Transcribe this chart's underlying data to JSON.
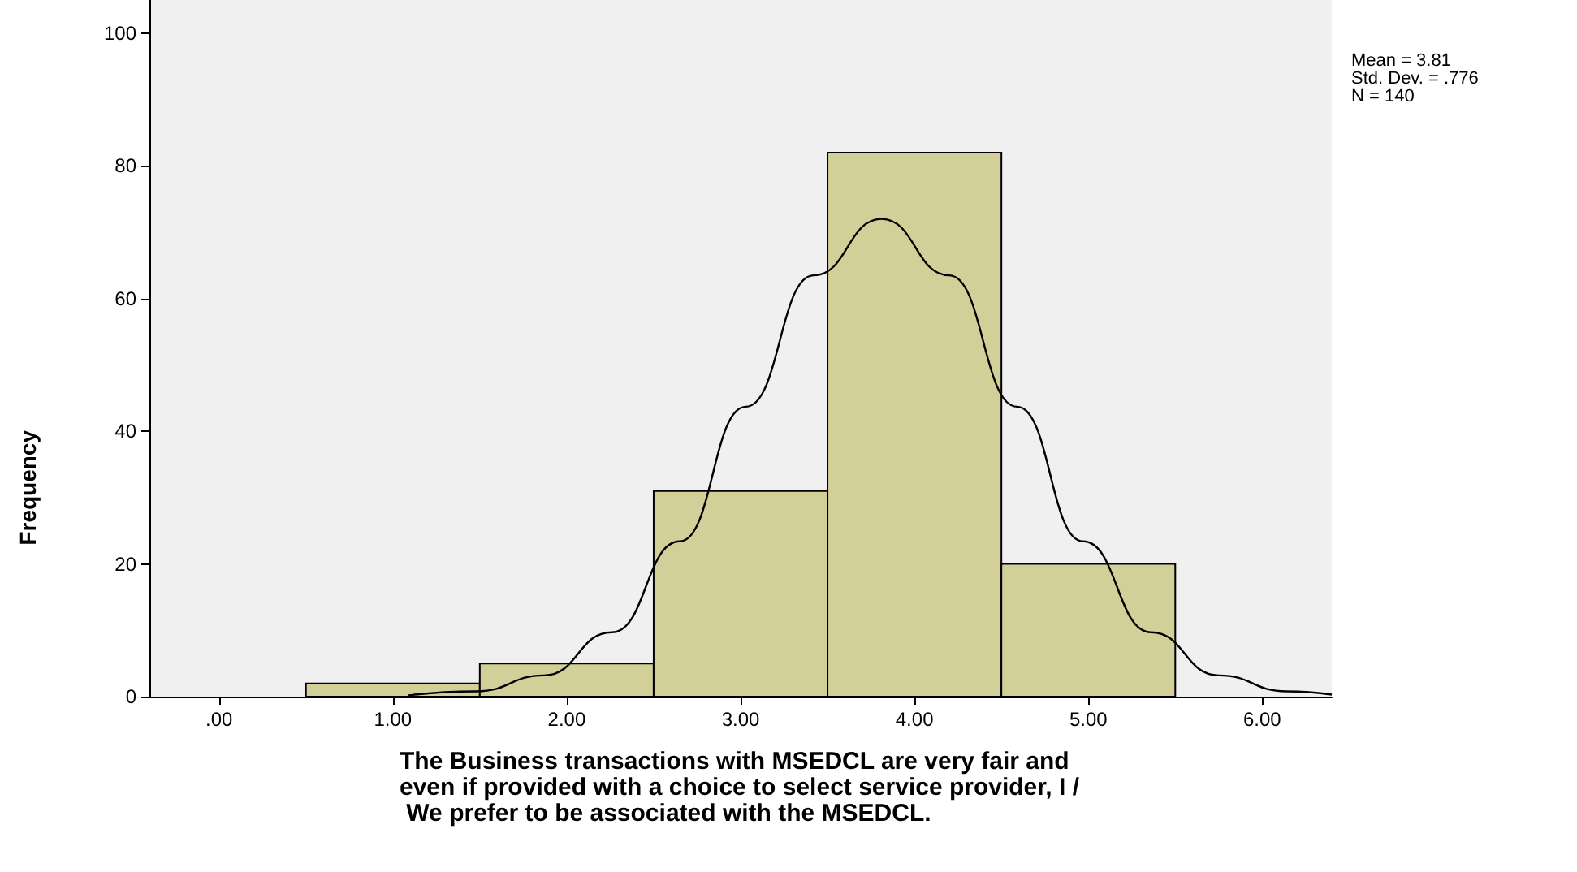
{
  "chart_data": {
    "type": "histogram",
    "xlabel": "The Business transactions with MSEDCL are very fair and even if provided with a choice to select service provider, I / We prefer to be associated with the MSEDCL.",
    "ylabel": "Frequency",
    "annotations": [
      "Mean = 3.81",
      "Std. Dev. = .776",
      "N = 140"
    ],
    "bins": [
      0.5,
      1.5,
      2.5,
      3.5,
      4.5,
      5.5
    ],
    "values": [
      2,
      5,
      31,
      82,
      20
    ],
    "color": "#d3cf98",
    "series": [
      {
        "type": "line",
        "color": "#000000",
        "x": [
          1.09,
          1.48,
          1.87,
          2.26,
          2.65,
          3.03,
          3.42,
          3.81,
          4.2,
          4.59,
          4.97,
          5.36,
          5.75,
          6.14,
          6.4
        ],
        "values": [
          0.2,
          0.8,
          3.2,
          9.7,
          23.4,
          43.7,
          63.5,
          72,
          63.5,
          43.7,
          23.4,
          9.7,
          3.2,
          0.8,
          0.3
        ]
      }
    ],
    "xlim": [
      -0.4,
      6.4
    ],
    "xticks": [
      {
        "value": 0,
        "label": ".00"
      },
      {
        "value": 1,
        "label": "1.00"
      },
      {
        "value": 2,
        "label": "2.00"
      },
      {
        "value": 3,
        "label": "3.00"
      },
      {
        "value": 4,
        "label": "4.00"
      },
      {
        "value": 5,
        "label": "5.00"
      },
      {
        "value": 6,
        "label": "6.00"
      }
    ],
    "ylim": [
      0,
      105
    ],
    "yticks": [
      0,
      20,
      40,
      60,
      80,
      100
    ],
    "grid": false
  }
}
